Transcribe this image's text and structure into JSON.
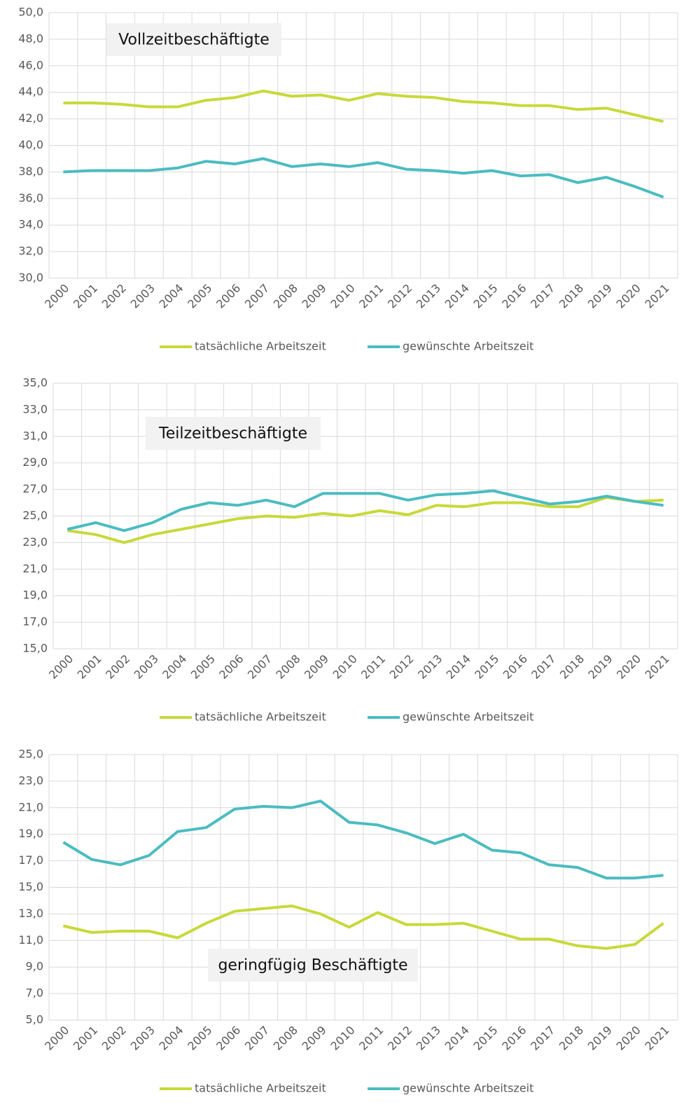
{
  "chart_data": [
    {
      "type": "line",
      "title": "Vollzeitbeschäftigte",
      "categories": [
        "2000",
        "2001",
        "2002",
        "2003",
        "2004",
        "2005",
        "2006",
        "2007",
        "2008",
        "2009",
        "2010",
        "2011",
        "2012",
        "2013",
        "2014",
        "2015",
        "2016",
        "2017",
        "2018",
        "2019",
        "2020",
        "2021"
      ],
      "series": [
        {
          "name": "tatsächliche Arbeitszeit",
          "color": "#c8d93a",
          "values": [
            43.2,
            43.2,
            43.1,
            42.9,
            42.9,
            43.4,
            43.6,
            44.1,
            43.7,
            43.8,
            43.4,
            43.9,
            43.7,
            43.6,
            43.3,
            43.2,
            43.0,
            43.0,
            42.7,
            42.8,
            42.3,
            41.8
          ]
        },
        {
          "name": "gewünschte Arbeitszeit",
          "color": "#4bbcc1",
          "values": [
            38.0,
            38.1,
            38.1,
            38.1,
            38.3,
            38.8,
            38.6,
            39.0,
            38.4,
            38.6,
            38.4,
            38.7,
            38.2,
            38.1,
            37.9,
            38.1,
            37.7,
            37.8,
            37.2,
            37.6,
            36.9,
            36.1
          ]
        }
      ],
      "ylim": [
        30,
        50
      ],
      "yticks": [
        {
          "value": 30,
          "label": "30,0"
        },
        {
          "value": 32,
          "label": "32,0"
        },
        {
          "value": 34,
          "label": "34,0"
        },
        {
          "value": 36,
          "label": "36,0"
        },
        {
          "value": 38,
          "label": "38,0"
        },
        {
          "value": 40,
          "label": "40,0"
        },
        {
          "value": 42,
          "label": "42,0"
        },
        {
          "value": 44,
          "label": "44,0"
        },
        {
          "value": 46,
          "label": "46,0"
        },
        {
          "value": 48,
          "label": "48,0"
        },
        {
          "value": 50,
          "label": "50,0"
        }
      ],
      "grid": true,
      "legend": "bottom"
    },
    {
      "type": "line",
      "title": "Teilzeitbeschäftigte",
      "categories": [
        "2000",
        "2001",
        "2002",
        "2003",
        "2004",
        "2005",
        "2006",
        "2007",
        "2008",
        "2009",
        "2010",
        "2011",
        "2012",
        "2013",
        "2014",
        "2015",
        "2016",
        "2017",
        "2018",
        "2019",
        "2020",
        "2021"
      ],
      "series": [
        {
          "name": "tatsächliche Arbeitszeit",
          "color": "#c8d93a",
          "values": [
            23.9,
            23.6,
            23.0,
            23.6,
            24.0,
            24.4,
            24.8,
            25.0,
            24.9,
            25.2,
            25.0,
            25.4,
            25.1,
            25.8,
            25.7,
            26.0,
            26.0,
            25.7,
            25.7,
            26.4,
            26.1,
            26.2
          ]
        },
        {
          "name": "gewünschte Arbeitszeit",
          "color": "#4bbcc1",
          "values": [
            24.0,
            24.5,
            23.9,
            24.5,
            25.5,
            26.0,
            25.8,
            26.2,
            25.7,
            26.7,
            26.7,
            26.7,
            26.2,
            26.6,
            26.7,
            26.9,
            26.4,
            25.9,
            26.1,
            26.5,
            26.1,
            25.8
          ]
        }
      ],
      "ylim": [
        15,
        35
      ],
      "yticks": [
        {
          "value": 15,
          "label": "15,0"
        },
        {
          "value": 17,
          "label": "17,0"
        },
        {
          "value": 19,
          "label": "19,0"
        },
        {
          "value": 21,
          "label": "21,0"
        },
        {
          "value": 23,
          "label": "23,0"
        },
        {
          "value": 25,
          "label": "25,0"
        },
        {
          "value": 27,
          "label": "27,0"
        },
        {
          "value": 29,
          "label": "29,0"
        },
        {
          "value": 31,
          "label": "31,0"
        },
        {
          "value": 33,
          "label": "33,0"
        },
        {
          "value": 35,
          "label": "35,0"
        }
      ],
      "grid": true,
      "legend": "bottom"
    },
    {
      "type": "line",
      "title": "geringfügig Beschäftigte",
      "categories": [
        "2000",
        "2001",
        "2002",
        "2003",
        "2004",
        "2005",
        "2006",
        "2007",
        "2008",
        "2009",
        "2010",
        "2011",
        "2012",
        "2013",
        "2014",
        "2015",
        "2016",
        "2017",
        "2018",
        "2019",
        "2020",
        "2021"
      ],
      "series": [
        {
          "name": "tatsächliche Arbeitszeit",
          "color": "#c8d93a",
          "values": [
            12.1,
            11.6,
            11.7,
            11.7,
            11.2,
            12.3,
            13.2,
            13.4,
            13.6,
            13.0,
            12.0,
            13.1,
            12.2,
            12.2,
            12.3,
            11.7,
            11.1,
            11.1,
            10.6,
            10.4,
            10.7,
            12.3
          ]
        },
        {
          "name": "gewünschte Arbeitszeit",
          "color": "#4bbcc1",
          "values": [
            18.4,
            17.1,
            16.7,
            17.4,
            19.2,
            19.5,
            20.9,
            21.1,
            21.0,
            21.5,
            19.9,
            19.7,
            19.1,
            18.3,
            19.0,
            17.8,
            17.6,
            16.7,
            16.5,
            15.7,
            15.7,
            15.9
          ]
        }
      ],
      "ylim": [
        5,
        25
      ],
      "yticks": [
        {
          "value": 5,
          "label": "5,0"
        },
        {
          "value": 7,
          "label": "7,0"
        },
        {
          "value": 9,
          "label": "9,0"
        },
        {
          "value": 11,
          "label": "11,0"
        },
        {
          "value": 13,
          "label": "13,0"
        },
        {
          "value": 15,
          "label": "15,0"
        },
        {
          "value": 17,
          "label": "17,0"
        },
        {
          "value": 19,
          "label": "19,0"
        },
        {
          "value": 21,
          "label": "21,0"
        },
        {
          "value": 23,
          "label": "23,0"
        },
        {
          "value": 25,
          "label": "25,0"
        }
      ],
      "grid": true,
      "legend": "bottom"
    }
  ]
}
